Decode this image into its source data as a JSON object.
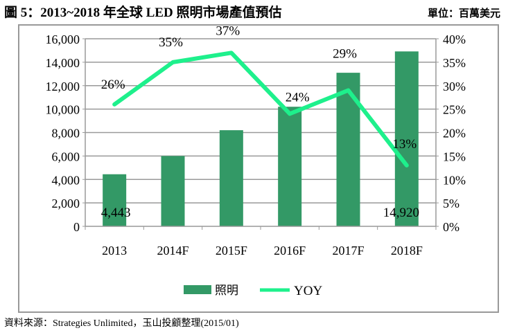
{
  "title": "圖 5：2013~2018 年全球 LED 照明市場產值預估",
  "unit": "單位：百萬美元",
  "source": "資料來源：Strategies Unlimited，玉山投顧整理(2015/01)",
  "chart_data": {
    "type": "bar",
    "categories": [
      "2013",
      "2014F",
      "2015F",
      "2016F",
      "2017F",
      "2018F"
    ],
    "series": [
      {
        "name": "照明",
        "type": "bar",
        "axis": "left",
        "color": "#339966",
        "values": [
          4443,
          6000,
          8200,
          10200,
          13100,
          14920
        ],
        "data_labels": [
          "4,443",
          "",
          "",
          "",
          "",
          "14,920"
        ]
      },
      {
        "name": "YOY",
        "type": "line",
        "axis": "right",
        "color": "#1EF08C",
        "values": [
          26,
          35,
          37,
          24,
          29,
          13
        ],
        "data_labels": [
          "26%",
          "35%",
          "37%",
          "24%",
          "29%",
          "13%"
        ]
      }
    ],
    "ylim": [
      0,
      16000
    ],
    "y2lim": [
      0,
      40
    ],
    "yticks": [
      "0",
      "2,000",
      "4,000",
      "6,000",
      "8,000",
      "10,000",
      "12,000",
      "14,000",
      "16,000"
    ],
    "y2ticks": [
      "0%",
      "5%",
      "10%",
      "15%",
      "20%",
      "25%",
      "30%",
      "35%",
      "40%"
    ],
    "grid": true,
    "legend": "bottom"
  }
}
